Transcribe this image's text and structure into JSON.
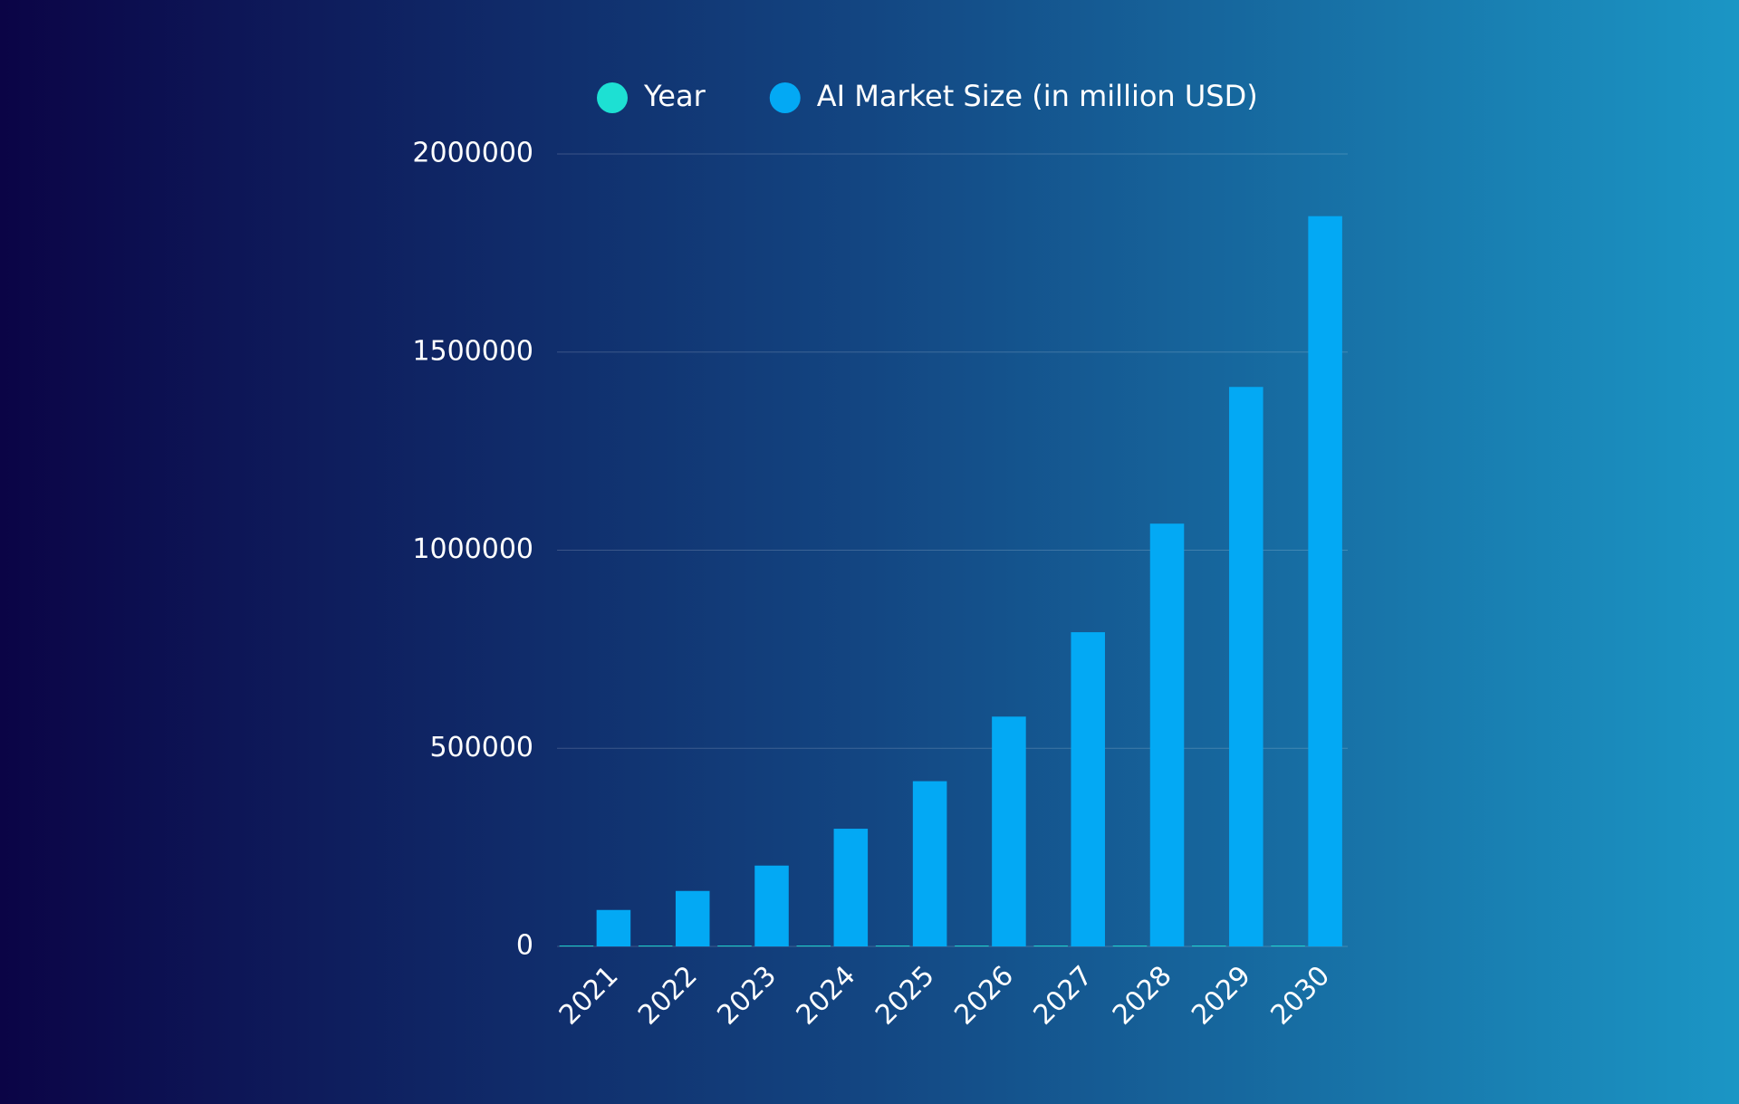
{
  "chart_data": {
    "type": "bar",
    "categories": [
      "2021",
      "2022",
      "2023",
      "2024",
      "2025",
      "2026",
      "2027",
      "2028",
      "2029",
      "2030"
    ],
    "series": [
      {
        "name": "Year",
        "color": "#1de0d3",
        "values": [
          2021,
          2022,
          2023,
          2024,
          2025,
          2026,
          2027,
          2028,
          2029,
          2030
        ]
      },
      {
        "name": "AI Market Size (in million USD)",
        "color": "#03a9f4",
        "values": [
          92000,
          140000,
          204000,
          297000,
          417000,
          580000,
          793000,
          1067000,
          1412000,
          1843000
        ]
      }
    ],
    "ylim": [
      0,
      2000000
    ],
    "yticks": [
      0,
      500000,
      1000000,
      1500000,
      2000000
    ],
    "grid": true,
    "legend": "top"
  }
}
